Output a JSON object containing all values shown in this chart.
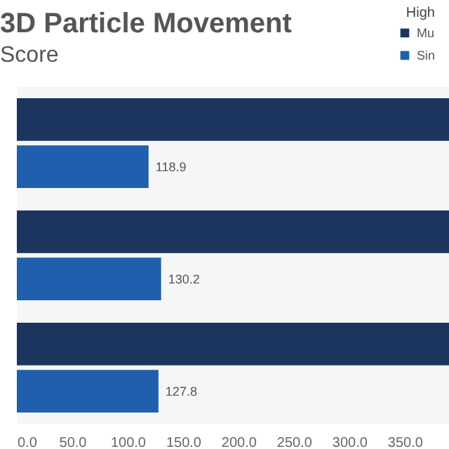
{
  "chart_data": {
    "type": "bar",
    "orientation": "horizontal",
    "title": "3D Particle Movement",
    "subtitle": "Score",
    "legend_title": "High",
    "legend": "top right",
    "categories": [
      null,
      null,
      null
    ],
    "series": [
      {
        "name": "Mu",
        "color": "#1c355e",
        "values": [
          390,
          390,
          390
        ]
      },
      {
        "name": "Sin",
        "color": "#1f5fae",
        "values": [
          118.9,
          130.2,
          127.8
        ],
        "value_labels": [
          "118.9",
          "130.2",
          "127.8"
        ]
      }
    ],
    "xlim": [
      0,
      390
    ],
    "xticks": [
      {
        "value": 0,
        "label": "0.0"
      },
      {
        "value": 50,
        "label": "50.0"
      },
      {
        "value": 100,
        "label": "100.0"
      },
      {
        "value": 150,
        "label": "150.0"
      },
      {
        "value": 200,
        "label": "200.0"
      },
      {
        "value": 250,
        "label": "250.0"
      },
      {
        "value": 300,
        "label": "300.0"
      },
      {
        "value": 350,
        "label": "350.0"
      }
    ]
  }
}
